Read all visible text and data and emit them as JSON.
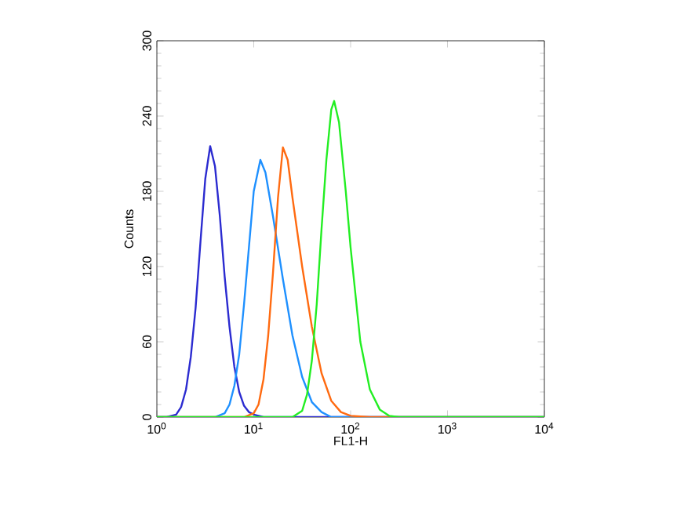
{
  "chart_data": {
    "type": "line",
    "xlabel": "FL1-H",
    "ylabel": "Counts",
    "log": "x",
    "xlim": [
      1,
      10000
    ],
    "ylim": [
      0,
      300
    ],
    "xticks": [
      {
        "value": 1,
        "label": "10$^{0}$"
      },
      {
        "value": 10,
        "label": "10$^{1}$"
      },
      {
        "value": 100,
        "label": "10$^{2}$"
      },
      {
        "value": 1000,
        "label": "10$^{3}$"
      },
      {
        "value": 10000,
        "label": "10$^{4}$"
      }
    ],
    "yticks": [
      0,
      60,
      120,
      180,
      240,
      300
    ],
    "grid": false,
    "marker": "none",
    "line_style": "solid",
    "series": [
      {
        "color": "#2b2bd0",
        "x": [
          1,
          1.26,
          1.58,
          1.78,
          2.0,
          2.24,
          2.51,
          2.82,
          3.16,
          3.55,
          3.98,
          4.47,
          5.01,
          5.62,
          6.31,
          7.08,
          7.94,
          8.91,
          10,
          12.6,
          31.6,
          10000
        ],
        "values": [
          0,
          0,
          2,
          8,
          22,
          48,
          87,
          140,
          190,
          216,
          200,
          160,
          112,
          72,
          40,
          20,
          9,
          4,
          2,
          0,
          0,
          0
        ]
      },
      {
        "color": "#1e90ff",
        "x": [
          1,
          3.98,
          5.01,
          5.62,
          6.31,
          7.08,
          7.94,
          8.91,
          10,
          11.7,
          13.2,
          15.8,
          20,
          25.1,
          31.6,
          39.8,
          50.1,
          63.1,
          10000
        ],
        "values": [
          0,
          0,
          3,
          10,
          25,
          50,
          90,
          135,
          180,
          205,
          195,
          160,
          110,
          65,
          32,
          12,
          4,
          0,
          0
        ]
      },
      {
        "color": "#ff6a10",
        "x": [
          1,
          7.94,
          10,
          11.2,
          12.6,
          14.1,
          15.8,
          17.8,
          20,
          22.4,
          25.1,
          31.6,
          39.8,
          50.1,
          63.1,
          79.4,
          100,
          158,
          10000
        ],
        "values": [
          0,
          0,
          3,
          10,
          30,
          65,
          115,
          175,
          215,
          205,
          175,
          120,
          72,
          35,
          13,
          4,
          1,
          0,
          0
        ]
      },
      {
        "color": "#22ee22",
        "x": [
          1,
          25.1,
          31.6,
          35.5,
          39.8,
          44.7,
          50.1,
          56.2,
          63.1,
          67.6,
          75.9,
          89.1,
          100,
          126,
          158,
          200,
          251,
          316,
          10000
        ],
        "values": [
          0,
          0,
          5,
          18,
          45,
          90,
          150,
          205,
          245,
          252,
          235,
          180,
          135,
          60,
          22,
          6,
          1,
          0,
          0
        ]
      }
    ]
  }
}
